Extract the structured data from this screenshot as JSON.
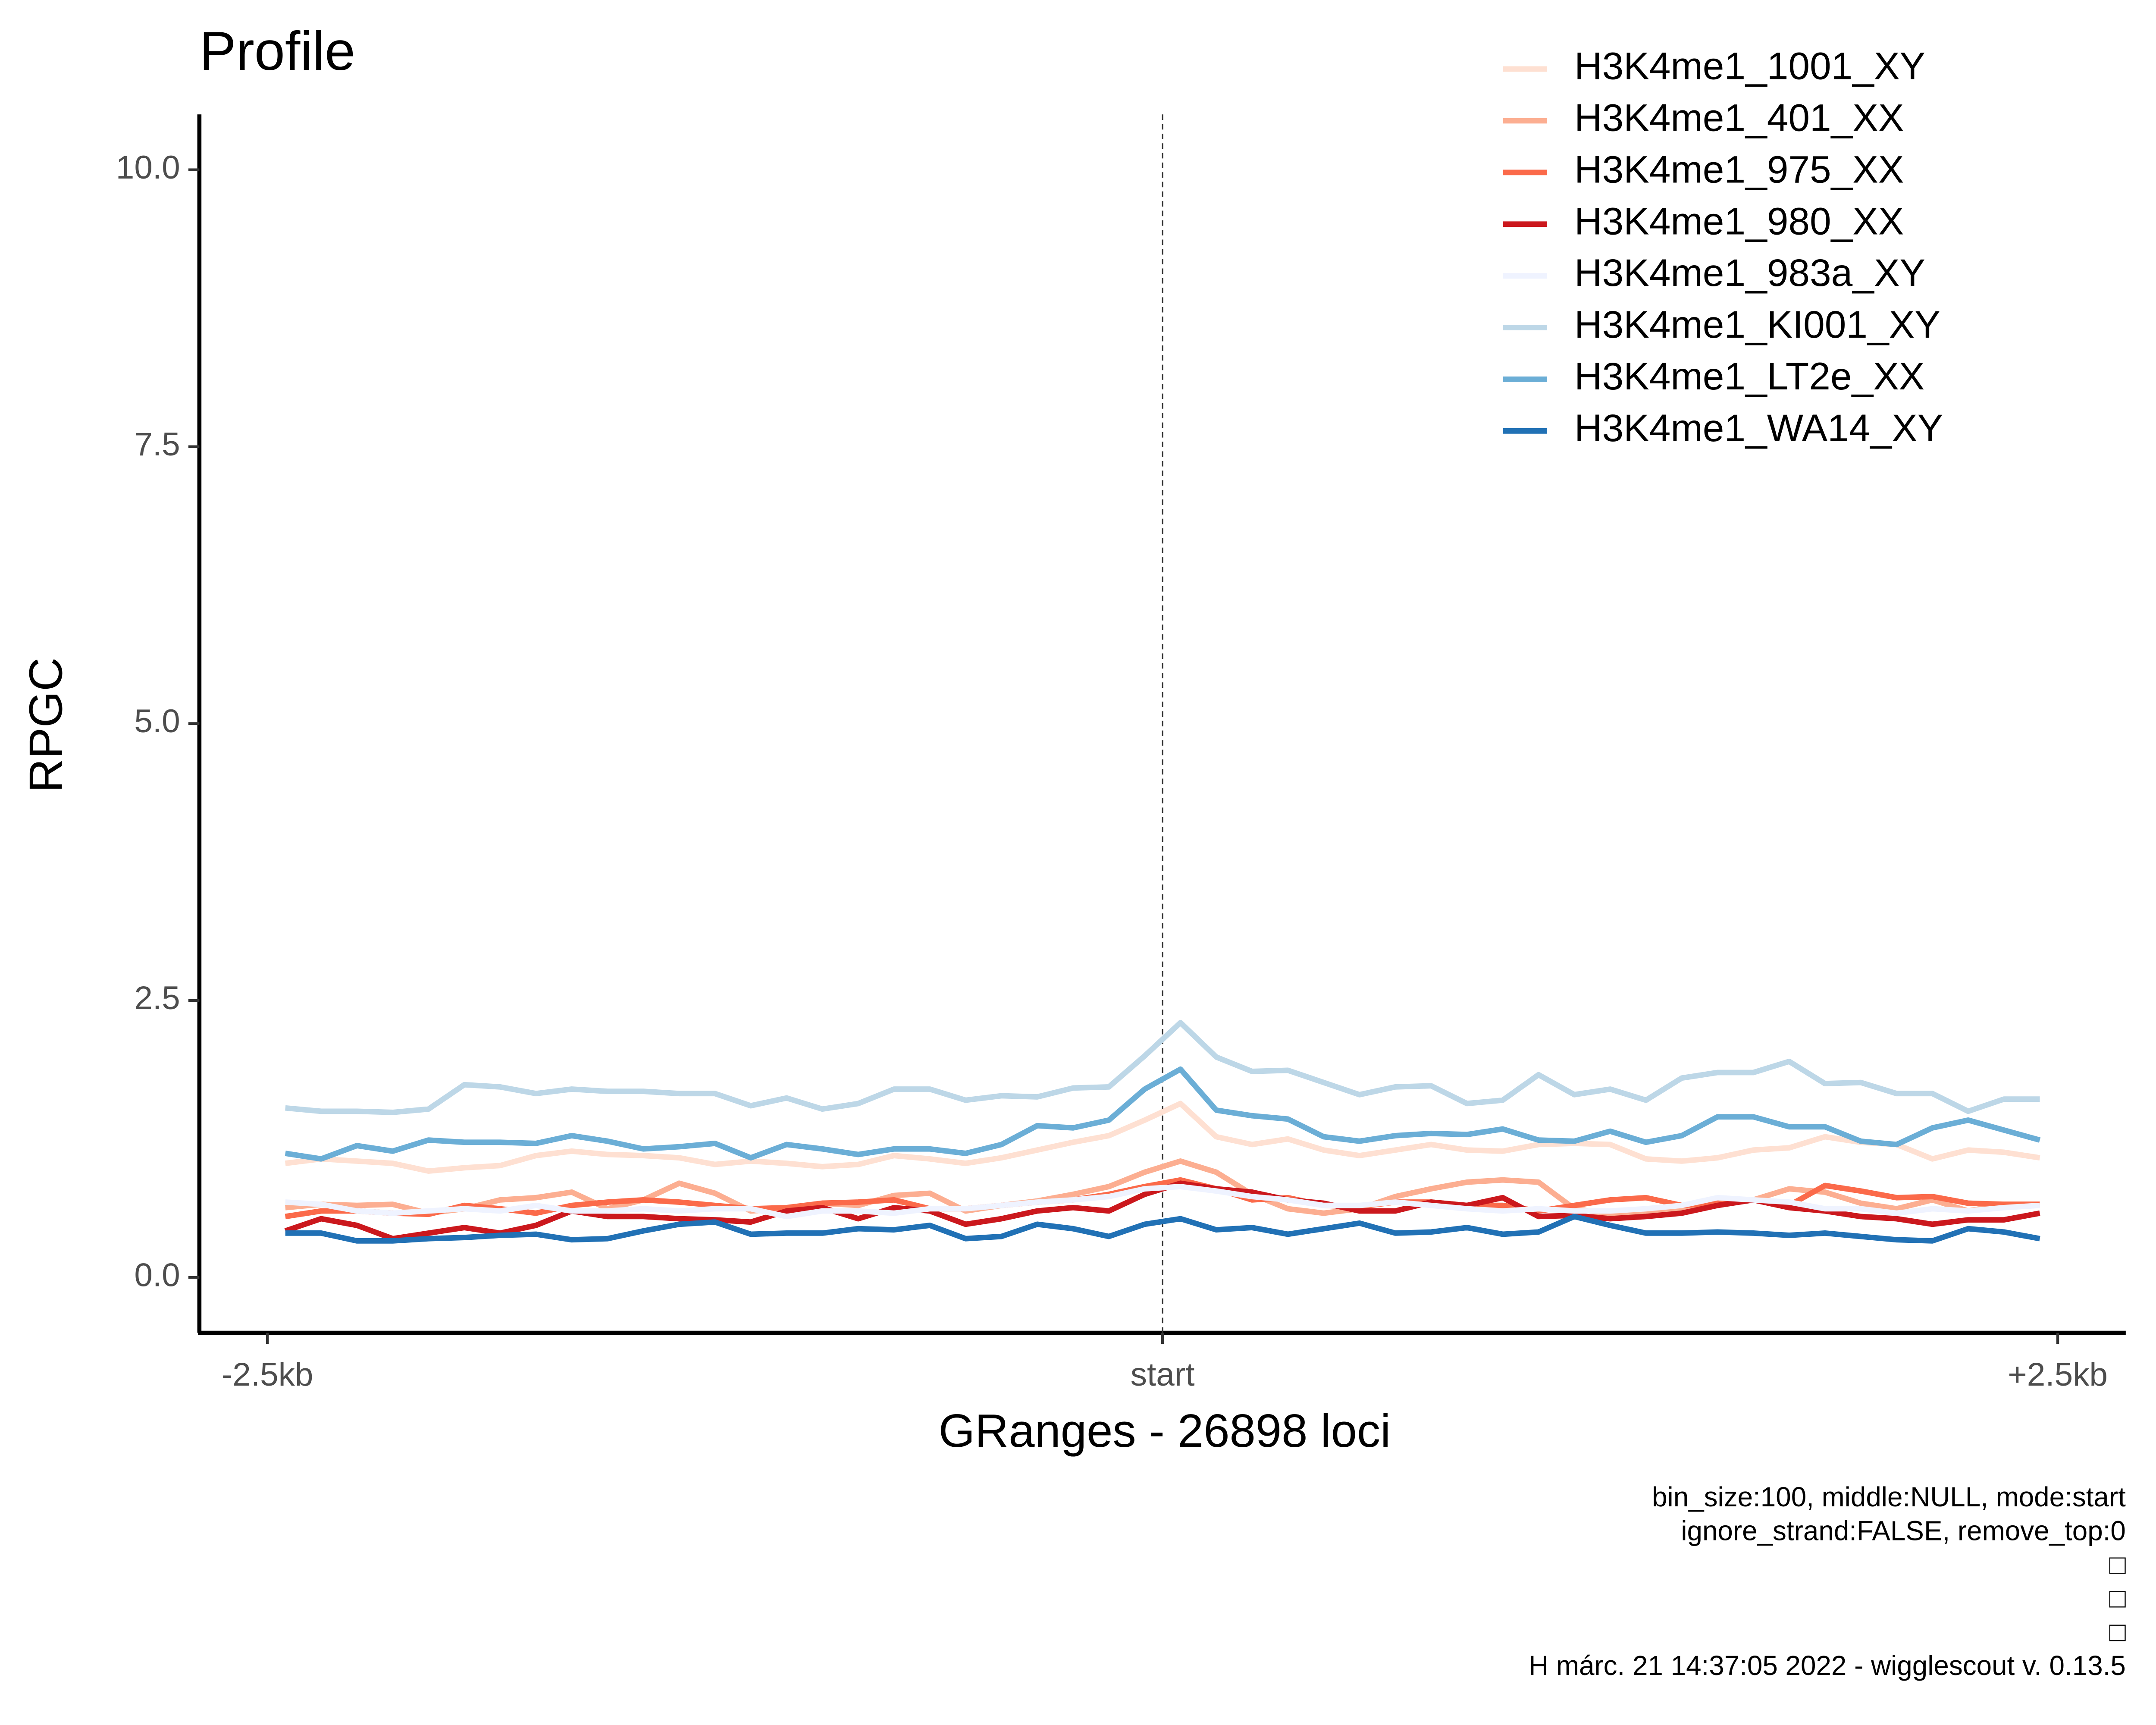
{
  "chart_data": {
    "type": "line",
    "title": "Profile",
    "x_label": "GRanges - 26898 loci",
    "y_label": "RPGC",
    "x": [
      -2450,
      -2350,
      -2250,
      -2150,
      -2050,
      -1950,
      -1850,
      -1750,
      -1650,
      -1550,
      -1450,
      -1350,
      -1250,
      -1150,
      -1050,
      -950,
      -850,
      -750,
      -650,
      -550,
      -450,
      -350,
      -250,
      -150,
      -50,
      50,
      150,
      250,
      350,
      450,
      550,
      650,
      750,
      850,
      950,
      1050,
      1150,
      1250,
      1350,
      1450,
      1550,
      1650,
      1750,
      1850,
      1950,
      2050,
      2150,
      2250,
      2350,
      2450
    ],
    "xlim": [
      -2690,
      2690
    ],
    "xticks": [
      {
        "value": -2500,
        "label": "-2.5kb"
      },
      {
        "value": 0,
        "label": "start"
      },
      {
        "value": 2500,
        "label": "+2.5kb"
      }
    ],
    "vline": 0,
    "ylim": [
      -0.5,
      10.5
    ],
    "yticks": [
      {
        "value": 0,
        "label": "0.0"
      },
      2.5,
      {
        "value": 5,
        "label": "5.0"
      },
      7.5,
      {
        "value": 10,
        "label": "10.0"
      }
    ],
    "legend": "top-right",
    "series": [
      {
        "name": "H3K4me1_1001_XY",
        "color": "#fee0d2",
        "values": [
          1.03,
          1.07,
          1.05,
          1.03,
          0.96,
          0.99,
          1.01,
          1.1,
          1.14,
          1.11,
          1.1,
          1.08,
          1.02,
          1.05,
          1.03,
          1.0,
          1.02,
          1.1,
          1.07,
          1.03,
          1.08,
          1.15,
          1.22,
          1.28,
          1.42,
          1.57,
          1.27,
          1.2,
          1.25,
          1.15,
          1.1,
          1.15,
          1.2,
          1.15,
          1.14,
          1.2,
          1.21,
          1.2,
          1.07,
          1.05,
          1.08,
          1.15,
          1.17,
          1.27,
          1.22,
          1.2,
          1.07,
          1.15,
          1.13,
          1.08
        ]
      },
      {
        "name": "H3K4me1_401_XX",
        "color": "#fcae91",
        "values": [
          0.63,
          0.66,
          0.65,
          0.66,
          0.58,
          0.62,
          0.7,
          0.72,
          0.77,
          0.62,
          0.7,
          0.85,
          0.76,
          0.6,
          0.62,
          0.67,
          0.65,
          0.74,
          0.76,
          0.6,
          0.65,
          0.69,
          0.75,
          0.82,
          0.95,
          1.05,
          0.95,
          0.75,
          0.62,
          0.58,
          0.62,
          0.73,
          0.8,
          0.86,
          0.88,
          0.86,
          0.62,
          0.57,
          0.58,
          0.63,
          0.7,
          0.7,
          0.8,
          0.77,
          0.67,
          0.62,
          0.7,
          0.6,
          0.66,
          0.66
        ]
      },
      {
        "name": "H3K4me1_975_XX",
        "color": "#fb6a4a",
        "values": [
          0.55,
          0.6,
          0.6,
          0.58,
          0.57,
          0.65,
          0.62,
          0.58,
          0.65,
          0.68,
          0.7,
          0.68,
          0.65,
          0.62,
          0.63,
          0.67,
          0.68,
          0.7,
          0.62,
          0.62,
          0.65,
          0.68,
          0.7,
          0.75,
          0.82,
          0.88,
          0.8,
          0.7,
          0.72,
          0.65,
          0.64,
          0.68,
          0.68,
          0.65,
          0.65,
          0.6,
          0.65,
          0.7,
          0.72,
          0.65,
          0.67,
          0.7,
          0.65,
          0.83,
          0.78,
          0.72,
          0.73,
          0.67,
          0.66,
          0.66
        ]
      },
      {
        "name": "H3K4me1_980_XX",
        "color": "#cb181d",
        "values": [
          0.42,
          0.53,
          0.47,
          0.35,
          0.4,
          0.45,
          0.4,
          0.47,
          0.6,
          0.55,
          0.55,
          0.53,
          0.52,
          0.5,
          0.6,
          0.63,
          0.53,
          0.63,
          0.6,
          0.48,
          0.53,
          0.6,
          0.63,
          0.6,
          0.75,
          0.85,
          0.8,
          0.77,
          0.7,
          0.67,
          0.6,
          0.6,
          0.68,
          0.65,
          0.72,
          0.55,
          0.56,
          0.53,
          0.55,
          0.58,
          0.65,
          0.7,
          0.63,
          0.6,
          0.55,
          0.53,
          0.48,
          0.52,
          0.52,
          0.58
        ]
      },
      {
        "name": "H3K4me1_983a_XY",
        "color": "#eff3ff",
        "values": [
          0.68,
          0.66,
          0.6,
          0.58,
          0.6,
          0.62,
          0.6,
          0.65,
          0.6,
          0.6,
          0.62,
          0.6,
          0.62,
          0.62,
          0.55,
          0.6,
          0.6,
          0.58,
          0.62,
          0.62,
          0.65,
          0.68,
          0.7,
          0.73,
          0.8,
          0.82,
          0.78,
          0.73,
          0.7,
          0.65,
          0.65,
          0.68,
          0.65,
          0.62,
          0.6,
          0.62,
          0.6,
          0.6,
          0.62,
          0.65,
          0.72,
          0.7,
          0.68,
          0.62,
          0.62,
          0.58,
          0.62,
          0.6,
          0.63,
          0.65
        ]
      },
      {
        "name": "H3K4me1_KI001_XY",
        "color": "#bdd7e7",
        "values": [
          1.53,
          1.5,
          1.5,
          1.49,
          1.52,
          1.74,
          1.72,
          1.66,
          1.7,
          1.68,
          1.68,
          1.66,
          1.66,
          1.55,
          1.62,
          1.52,
          1.57,
          1.7,
          1.7,
          1.6,
          1.64,
          1.63,
          1.71,
          1.72,
          2.0,
          2.3,
          1.99,
          1.86,
          1.87,
          1.76,
          1.65,
          1.72,
          1.73,
          1.57,
          1.6,
          1.83,
          1.65,
          1.7,
          1.6,
          1.8,
          1.85,
          1.85,
          1.95,
          1.75,
          1.76,
          1.66,
          1.66,
          1.5,
          1.61,
          1.61
        ]
      },
      {
        "name": "H3K4me1_LT2e_XX",
        "color": "#6baed6",
        "values": [
          1.12,
          1.07,
          1.19,
          1.14,
          1.24,
          1.22,
          1.22,
          1.21,
          1.28,
          1.23,
          1.16,
          1.18,
          1.21,
          1.08,
          1.2,
          1.16,
          1.11,
          1.16,
          1.16,
          1.12,
          1.2,
          1.37,
          1.35,
          1.42,
          1.7,
          1.88,
          1.51,
          1.46,
          1.43,
          1.27,
          1.23,
          1.28,
          1.3,
          1.29,
          1.34,
          1.24,
          1.23,
          1.32,
          1.22,
          1.28,
          1.45,
          1.45,
          1.36,
          1.36,
          1.23,
          1.2,
          1.35,
          1.42,
          1.33,
          1.24
        ]
      },
      {
        "name": "H3K4me1_WA14_XY",
        "color": "#2171b5",
        "values": [
          0.4,
          0.4,
          0.33,
          0.33,
          0.35,
          0.36,
          0.38,
          0.39,
          0.34,
          0.35,
          0.42,
          0.48,
          0.5,
          0.39,
          0.4,
          0.4,
          0.44,
          0.43,
          0.47,
          0.35,
          0.37,
          0.48,
          0.44,
          0.37,
          0.48,
          0.53,
          0.43,
          0.45,
          0.39,
          0.44,
          0.49,
          0.4,
          0.41,
          0.45,
          0.39,
          0.41,
          0.55,
          0.47,
          0.4,
          0.4,
          0.41,
          0.4,
          0.38,
          0.4,
          0.37,
          0.34,
          0.33,
          0.44,
          0.41,
          0.35
        ]
      }
    ],
    "caption": [
      "bin_size:100, middle:NULL, mode:start",
      "ignore_strand:FALSE, remove_top:0",
      "□",
      "□",
      "□",
      "H márc. 21 14:37:05 2022 - wigglescout v. 0.13.5"
    ]
  }
}
